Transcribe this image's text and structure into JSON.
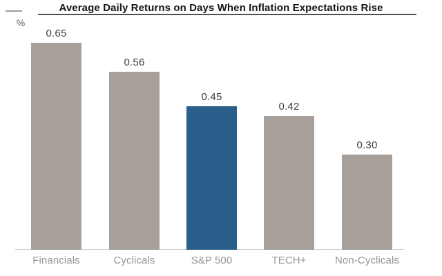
{
  "header": {
    "title": "Average Daily Returns on Days When Inflation Expectations Rise",
    "unit_label": "%"
  },
  "chart_data": {
    "type": "bar",
    "title": "Average Daily Returns on Days When Inflation Expectations Rise",
    "ylabel": "%",
    "xlabel": "",
    "categories": [
      "Financials",
      "Cyclicals",
      "S&P 500",
      "TECH+",
      "Non-Cyclicals"
    ],
    "values": [
      0.65,
      0.56,
      0.45,
      0.42,
      0.3
    ],
    "value_labels": [
      "0.65",
      "0.56",
      "0.45",
      "0.42",
      "0.30"
    ],
    "ylim": [
      0,
      0.7
    ],
    "grid": "off",
    "legend": "none",
    "highlight_index": 2,
    "bar_color": "#a7a09a",
    "highlight_color": "#2a5f8c",
    "axis_color": "#cccccc"
  }
}
